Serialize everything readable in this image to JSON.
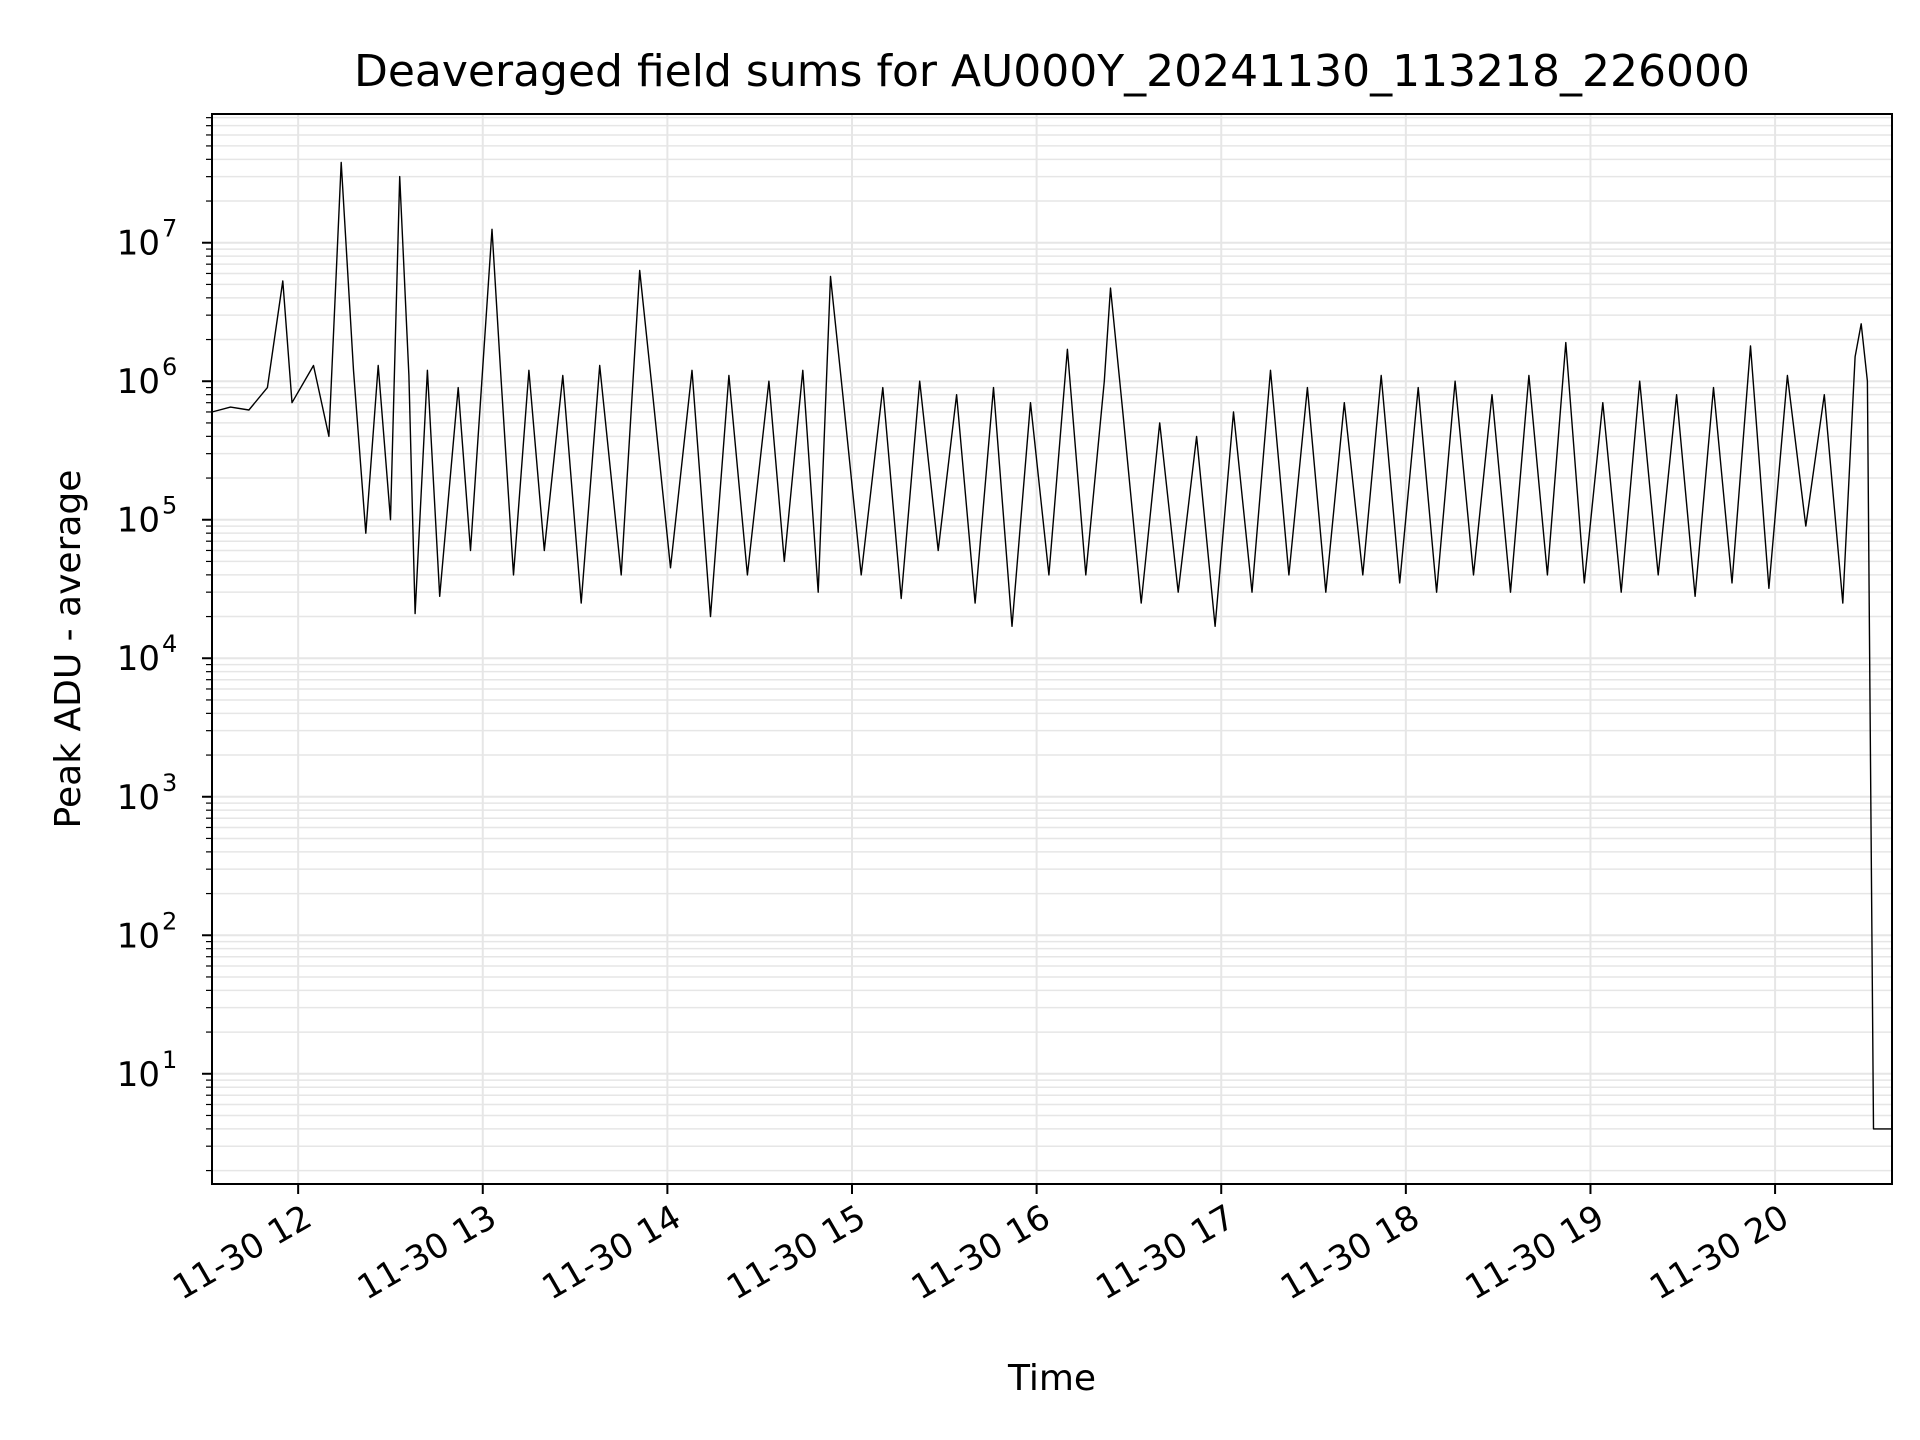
{
  "chart_data": {
    "type": "line",
    "title": "Deaveraged field sums for AU000Y_20241130_113218_226000",
    "xlabel": "Time",
    "ylabel": "Peak ADU - average",
    "y_scale": "log",
    "ylim": [
      1.6,
      85000000
    ],
    "xlim": [
      "2024-11-30 11:32",
      "2024-11-30 20:38"
    ],
    "grid": true,
    "grid_minor": true,
    "line_color": "#000000",
    "grid_color": "#e6e6e6",
    "x_ticks": [
      {
        "t": "2024-11-30 12:00",
        "label": "11-30 12"
      },
      {
        "t": "2024-11-30 13:00",
        "label": "11-30 13"
      },
      {
        "t": "2024-11-30 14:00",
        "label": "11-30 14"
      },
      {
        "t": "2024-11-30 15:00",
        "label": "11-30 15"
      },
      {
        "t": "2024-11-30 16:00",
        "label": "11-30 16"
      },
      {
        "t": "2024-11-30 17:00",
        "label": "11-30 17"
      },
      {
        "t": "2024-11-30 18:00",
        "label": "11-30 18"
      },
      {
        "t": "2024-11-30 19:00",
        "label": "11-30 19"
      },
      {
        "t": "2024-11-30 20:00",
        "label": "11-30 20"
      }
    ],
    "y_ticks": [
      {
        "value": 10,
        "base": "10",
        "exp": "1"
      },
      {
        "value": 100,
        "base": "10",
        "exp": "2"
      },
      {
        "value": 1000,
        "base": "10",
        "exp": "3"
      },
      {
        "value": 10000,
        "base": "10",
        "exp": "4"
      },
      {
        "value": 100000,
        "base": "10",
        "exp": "5"
      },
      {
        "value": 1000000,
        "base": "10",
        "exp": "6"
      },
      {
        "value": 10000000,
        "base": "10",
        "exp": "7"
      }
    ],
    "series": [
      {
        "points": [
          [
            "2024-11-30 11:32",
            600000
          ],
          [
            "2024-11-30 11:38",
            650000
          ],
          [
            "2024-11-30 11:44",
            620000
          ],
          [
            "2024-11-30 11:50",
            900000
          ],
          [
            "2024-11-30 11:55",
            5300000
          ],
          [
            "2024-11-30 11:58",
            700000
          ],
          [
            "2024-11-30 12:05",
            1300000
          ],
          [
            "2024-11-30 12:10",
            400000
          ],
          [
            "2024-11-30 12:14",
            38000000
          ],
          [
            "2024-11-30 12:18",
            1200000
          ],
          [
            "2024-11-30 12:22",
            80000
          ],
          [
            "2024-11-30 12:26",
            1300000
          ],
          [
            "2024-11-30 12:30",
            100000
          ],
          [
            "2024-11-30 12:33",
            30000000
          ],
          [
            "2024-11-30 12:36",
            1100000
          ],
          [
            "2024-11-30 12:38",
            21000
          ],
          [
            "2024-11-30 12:42",
            1200000
          ],
          [
            "2024-11-30 12:46",
            28000
          ],
          [
            "2024-11-30 12:52",
            900000
          ],
          [
            "2024-11-30 12:56",
            60000
          ],
          [
            "2024-11-30 13:03",
            12500000
          ],
          [
            "2024-11-30 13:06",
            1000000
          ],
          [
            "2024-11-30 13:10",
            40000
          ],
          [
            "2024-11-30 13:15",
            1200000
          ],
          [
            "2024-11-30 13:20",
            60000
          ],
          [
            "2024-11-30 13:26",
            1100000
          ],
          [
            "2024-11-30 13:32",
            25000
          ],
          [
            "2024-11-30 13:38",
            1300000
          ],
          [
            "2024-11-30 13:45",
            40000
          ],
          [
            "2024-11-30 13:51",
            6300000
          ],
          [
            "2024-11-30 13:55",
            900000
          ],
          [
            "2024-11-30 14:01",
            45000
          ],
          [
            "2024-11-30 14:08",
            1200000
          ],
          [
            "2024-11-30 14:14",
            20000
          ],
          [
            "2024-11-30 14:20",
            1100000
          ],
          [
            "2024-11-30 14:26",
            40000
          ],
          [
            "2024-11-30 14:33",
            1000000
          ],
          [
            "2024-11-30 14:38",
            50000
          ],
          [
            "2024-11-30 14:44",
            1200000
          ],
          [
            "2024-11-30 14:49",
            30000
          ],
          [
            "2024-11-30 14:53",
            5700000
          ],
          [
            "2024-11-30 14:57",
            800000
          ],
          [
            "2024-11-30 15:03",
            40000
          ],
          [
            "2024-11-30 15:10",
            900000
          ],
          [
            "2024-11-30 15:16",
            27000
          ],
          [
            "2024-11-30 15:22",
            1000000
          ],
          [
            "2024-11-30 15:28",
            60000
          ],
          [
            "2024-11-30 15:34",
            800000
          ],
          [
            "2024-11-30 15:40",
            25000
          ],
          [
            "2024-11-30 15:46",
            900000
          ],
          [
            "2024-11-30 15:52",
            17000
          ],
          [
            "2024-11-30 15:58",
            700000
          ],
          [
            "2024-11-30 16:04",
            40000
          ],
          [
            "2024-11-30 16:10",
            1700000
          ],
          [
            "2024-11-30 16:16",
            40000
          ],
          [
            "2024-11-30 16:22",
            1000000
          ],
          [
            "2024-11-30 16:24",
            4700000
          ],
          [
            "2024-11-30 16:28",
            600000
          ],
          [
            "2024-11-30 16:34",
            25000
          ],
          [
            "2024-11-30 16:40",
            500000
          ],
          [
            "2024-11-30 16:46",
            30000
          ],
          [
            "2024-11-30 16:52",
            400000
          ],
          [
            "2024-11-30 16:58",
            17000
          ],
          [
            "2024-11-30 17:04",
            600000
          ],
          [
            "2024-11-30 17:10",
            30000
          ],
          [
            "2024-11-30 17:16",
            1200000
          ],
          [
            "2024-11-30 17:22",
            40000
          ],
          [
            "2024-11-30 17:28",
            900000
          ],
          [
            "2024-11-30 17:34",
            30000
          ],
          [
            "2024-11-30 17:40",
            700000
          ],
          [
            "2024-11-30 17:46",
            40000
          ],
          [
            "2024-11-30 17:52",
            1100000
          ],
          [
            "2024-11-30 17:58",
            35000
          ],
          [
            "2024-11-30 18:04",
            900000
          ],
          [
            "2024-11-30 18:10",
            30000
          ],
          [
            "2024-11-30 18:16",
            1000000
          ],
          [
            "2024-11-30 18:22",
            40000
          ],
          [
            "2024-11-30 18:28",
            800000
          ],
          [
            "2024-11-30 18:34",
            30000
          ],
          [
            "2024-11-30 18:40",
            1100000
          ],
          [
            "2024-11-30 18:46",
            40000
          ],
          [
            "2024-11-30 18:52",
            1900000
          ],
          [
            "2024-11-30 18:58",
            35000
          ],
          [
            "2024-11-30 19:04",
            700000
          ],
          [
            "2024-11-30 19:10",
            30000
          ],
          [
            "2024-11-30 19:16",
            1000000
          ],
          [
            "2024-11-30 19:22",
            40000
          ],
          [
            "2024-11-30 19:28",
            800000
          ],
          [
            "2024-11-30 19:34",
            28000
          ],
          [
            "2024-11-30 19:40",
            900000
          ],
          [
            "2024-11-30 19:46",
            35000
          ],
          [
            "2024-11-30 19:52",
            1800000
          ],
          [
            "2024-11-30 19:58",
            32000
          ],
          [
            "2024-11-30 20:04",
            1100000
          ],
          [
            "2024-11-30 20:10",
            90000
          ],
          [
            "2024-11-30 20:16",
            800000
          ],
          [
            "2024-11-30 20:22",
            25000
          ],
          [
            "2024-11-30 20:26",
            1500000
          ],
          [
            "2024-11-30 20:28",
            2600000
          ],
          [
            "2024-11-30 20:30",
            1000000
          ],
          [
            "2024-11-30 20:32",
            4
          ],
          [
            "2024-11-30 20:35",
            4
          ],
          [
            "2024-11-30 20:38",
            4
          ]
        ]
      }
    ]
  }
}
